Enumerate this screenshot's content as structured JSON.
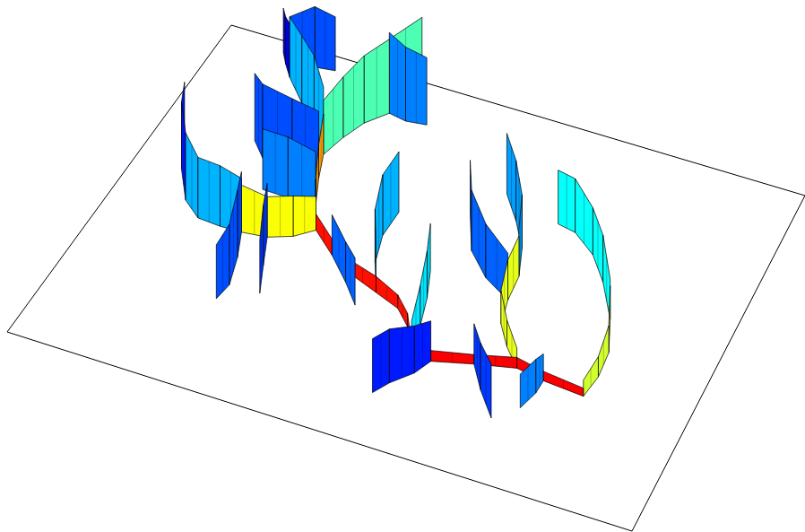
{
  "chart_data": {
    "type": "ribbon3d",
    "tick_labels": false,
    "grid": false,
    "xlim": [
      0,
      100
    ],
    "ylim": [
      0,
      100
    ],
    "zlim": [
      0,
      1
    ],
    "clim": [
      0,
      1
    ],
    "series": [
      {
        "x": [
          83.3,
          76.5,
          71.8,
          65.5,
          59.3,
          56.1
        ],
        "y": [
          30.7,
          31.5,
          32.6,
          30.2,
          27.4,
          27.6
        ],
        "values": [
          0.06,
          0.07,
          0.08,
          0.07,
          0.08,
          0.08
        ],
        "level": 0.88
      },
      {
        "x": [
          56.1,
          53.2,
          50.3,
          45.9,
          40.5,
          36.5,
          32.0
        ],
        "y": [
          27.6,
          34.5,
          38.5,
          40.9,
          43.8,
          47.1,
          52.4
        ],
        "values": [
          0.08,
          0.1,
          0.1,
          0.12,
          0.1,
          0.12,
          0.12
        ],
        "level": 0.86
      },
      {
        "x": [
          32.0,
          29.7,
          27.6,
          26.0
        ],
        "y": [
          52.4,
          58.8,
          66.2,
          73.0
        ],
        "values": [
          0.15,
          0.2,
          0.25,
          0.3
        ],
        "level": 0.72
      },
      {
        "x": [
          26.0,
          27.2,
          28.8,
          31.5,
          34.8
        ],
        "y": [
          73.0,
          79.0,
          84.5,
          89.1,
          95.7
        ],
        "values": [
          0.4,
          0.45,
          0.5,
          0.55,
          0.6
        ],
        "level": 0.45
      },
      {
        "x": [
          26.0,
          22.3,
          18.0,
          13.7
        ],
        "y": [
          73.0,
          78.8,
          84.8,
          90.7
        ],
        "values": [
          0.5,
          0.55,
          0.5,
          0.45
        ],
        "level": 0.3
      },
      {
        "x": [
          13.7,
          11.8,
          10.3
        ],
        "y": [
          90.7,
          93.9,
          96.8
        ],
        "values": [
          0.4,
          0.35,
          0.33
        ],
        "level": 0.12
      },
      {
        "x": [
          13.7,
          16.3,
          19.6
        ],
        "y": [
          90.7,
          95.4,
          96.1
        ],
        "values": [
          0.45,
          0.45,
          0.4
        ],
        "level": 0.2
      },
      {
        "x": [
          31.5,
          34.6,
          38.0
        ],
        "y": [
          89.1,
          88.3,
          89.0
        ],
        "values": [
          0.6,
          0.55,
          0.5
        ],
        "level": 0.25
      },
      {
        "x": [
          32.0,
          29.4,
          25.9,
          21.9
        ],
        "y": [
          52.4,
          48.9,
          46.6,
          45.8
        ],
        "values": [
          0.25,
          0.3,
          0.3,
          0.35
        ],
        "level": 0.62
      },
      {
        "x": [
          21.9,
          18.4,
          14.6,
          11.2
        ],
        "y": [
          45.8,
          45.6,
          46.0,
          49.7
        ],
        "values": [
          0.4,
          0.45,
          0.45,
          0.5
        ],
        "level": 0.3
      },
      {
        "x": [
          11.2,
          7.6,
          5.4
        ],
        "y": [
          49.7,
          57.6,
          64.9
        ],
        "values": [
          0.5,
          0.5,
          0.45
        ],
        "level": 0.15
      },
      {
        "x": [
          21.9,
          23.7,
          25.1,
          24.6
        ],
        "y": [
          45.8,
          38.8,
          30.9,
          26.2
        ],
        "values": [
          0.45,
          0.5,
          0.45,
          0.4
        ],
        "level": 0.2
      },
      {
        "x": [
          25.9,
          28.0,
          30.0
        ],
        "y": [
          46.6,
          38.7,
          31.2
        ],
        "values": [
          0.4,
          0.45,
          0.4
        ],
        "level": 0.18
      },
      {
        "x": [
          36.5,
          40.8,
          44.1
        ],
        "y": [
          47.1,
          41.1,
          35.9
        ],
        "values": [
          0.3,
          0.3,
          0.35
        ],
        "level": 0.22
      },
      {
        "x": [
          45.9,
          43.2,
          41.8,
          42.0
        ],
        "y": [
          40.9,
          48.5,
          56.4,
          63.8
        ],
        "values": [
          0.35,
          0.4,
          0.45,
          0.45
        ],
        "level": 0.3
      },
      {
        "x": [
          29.7,
          25.1,
          20.8
        ],
        "y": [
          58.8,
          58.7,
          58.8
        ],
        "values": [
          0.4,
          0.45,
          0.45
        ],
        "level": 0.25
      },
      {
        "x": [
          27.6,
          22.7,
          17.8,
          15.0
        ],
        "y": [
          66.2,
          67.4,
          67.1,
          71.1
        ],
        "values": [
          0.5,
          0.5,
          0.55,
          0.5
        ],
        "level": 0.2
      },
      {
        "x": [
          83.3,
          83.9,
          83.5,
          81.1
        ],
        "y": [
          30.7,
          36.9,
          44.0,
          52.7
        ],
        "values": [
          0.12,
          0.15,
          0.2,
          0.25
        ],
        "level": 0.58
      },
      {
        "x": [
          81.1,
          77.1,
          73.4,
          69.0,
          65.8
        ],
        "y": [
          52.7,
          61.8,
          68.1,
          72.5,
          73.4
        ],
        "values": [
          0.3,
          0.35,
          0.35,
          0.4,
          0.4
        ],
        "level": 0.38
      },
      {
        "x": [
          71.8,
          68.7,
          66.0,
          65.0,
          64.6
        ],
        "y": [
          32.6,
          37.3,
          42.8,
          49.5,
          56.6
        ],
        "values": [
          0.15,
          0.2,
          0.25,
          0.3,
          0.3
        ],
        "level": 0.6
      },
      {
        "x": [
          64.6,
          62.7,
          59.5,
          55.8
        ],
        "y": [
          56.6,
          64.1,
          70.8,
          77.2
        ],
        "values": [
          0.35,
          0.4,
          0.45,
          0.45
        ],
        "level": 0.28
      },
      {
        "x": [
          65.0,
          60.0,
          55.7,
          52.3
        ],
        "y": [
          49.5,
          53.6,
          59.5,
          69.0
        ],
        "values": [
          0.35,
          0.4,
          0.45,
          0.4
        ],
        "level": 0.22
      },
      {
        "x": [
          56.1,
          54.9,
          53.5,
          51.6
        ],
        "y": [
          27.6,
          35.7,
          43.5,
          51.0
        ],
        "values": [
          0.25,
          0.3,
          0.35,
          0.35
        ],
        "level": 0.35
      },
      {
        "x": [
          59.3,
          58.0,
          55.4,
          53.9
        ],
        "y": [
          27.4,
          23.0,
          18.4,
          14.5
        ],
        "values": [
          0.3,
          0.35,
          0.4,
          0.4
        ],
        "level": 0.15
      },
      {
        "x": [
          65.5,
          68.5,
          72.2
        ],
        "y": [
          30.2,
          24.0,
          17.6
        ],
        "values": [
          0.3,
          0.35,
          0.4
        ],
        "level": 0.18
      },
      {
        "x": [
          76.5,
          76.4,
          75.4
        ],
        "y": [
          31.5,
          27.7,
          22.6
        ],
        "values": [
          0.2,
          0.25,
          0.25
        ],
        "level": 0.25
      }
    ]
  }
}
